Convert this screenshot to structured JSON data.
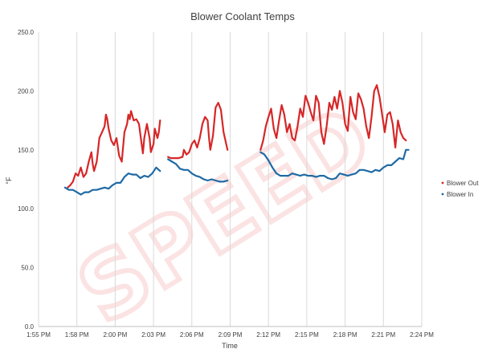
{
  "chart_data": {
    "type": "line",
    "title": "Blower Coolant Temps",
    "xlabel": "Time",
    "ylabel": "°F",
    "ylim": [
      0,
      250
    ],
    "y_ticks": [
      "0.0",
      "50.0",
      "100.0",
      "150.0",
      "200.0",
      "250.0"
    ],
    "x_ticks": [
      "1:55 PM",
      "1:58 PM",
      "2:00 PM",
      "2:03 PM",
      "2:06 PM",
      "2:09 PM",
      "2:12 PM",
      "2:15 PM",
      "2:18 PM",
      "2:21 PM",
      "2:24 PM"
    ],
    "x_unit": "minutes from 1:55 PM",
    "xlim": [
      0,
      29
    ],
    "grid": "vertical",
    "legend_position": "right",
    "colors": {
      "Blower Out": "#d62728",
      "Blower In": "#1f6aa5"
    },
    "watermark": "SPEED",
    "series": [
      {
        "name": "Blower Out",
        "segments": [
          [
            [
              2.2,
              118
            ],
            [
              2.4,
              120
            ],
            [
              2.6,
              123
            ],
            [
              2.8,
              130
            ],
            [
              3.0,
              128
            ],
            [
              3.2,
              135
            ],
            [
              3.4,
              127
            ],
            [
              3.6,
              130
            ],
            [
              3.8,
              140
            ],
            [
              4.0,
              148
            ],
            [
              4.1,
              138
            ],
            [
              4.2,
              132
            ],
            [
              4.4,
              140
            ],
            [
              4.6,
              160
            ],
            [
              4.8,
              165
            ],
            [
              5.0,
              170
            ],
            [
              5.1,
              180
            ],
            [
              5.2,
              176
            ],
            [
              5.3,
              168
            ],
            [
              5.5,
              158
            ],
            [
              5.7,
              154
            ],
            [
              5.9,
              160
            ],
            [
              6.1,
              145
            ],
            [
              6.3,
              140
            ],
            [
              6.5,
              165
            ],
            [
              6.7,
              172
            ],
            [
              6.8,
              180
            ],
            [
              6.9,
              176
            ],
            [
              7.0,
              183
            ],
            [
              7.2,
              175
            ],
            [
              7.4,
              176
            ],
            [
              7.6,
              172
            ],
            [
              7.8,
              155
            ],
            [
              7.9,
              147
            ],
            [
              8.0,
              160
            ],
            [
              8.2,
              172
            ],
            [
              8.4,
              160
            ],
            [
              8.5,
              148
            ],
            [
              8.7,
              155
            ],
            [
              8.8,
              168
            ],
            [
              9.0,
              160
            ],
            [
              9.1,
              165
            ],
            [
              9.2,
              175
            ]
          ],
          [
            [
              9.8,
              144
            ],
            [
              10.0,
              143
            ],
            [
              10.3,
              143
            ],
            [
              10.6,
              143
            ],
            [
              10.9,
              144
            ],
            [
              11.0,
              150
            ],
            [
              11.2,
              146
            ],
            [
              11.4,
              148
            ],
            [
              11.6,
              155
            ],
            [
              11.8,
              158
            ],
            [
              12.0,
              152
            ],
            [
              12.2,
              160
            ],
            [
              12.4,
              172
            ],
            [
              12.6,
              178
            ],
            [
              12.8,
              175
            ],
            [
              12.9,
              160
            ],
            [
              13.0,
              150
            ],
            [
              13.2,
              162
            ],
            [
              13.4,
              186
            ],
            [
              13.6,
              190
            ],
            [
              13.8,
              184
            ],
            [
              14.0,
              165
            ],
            [
              14.3,
              150
            ]
          ],
          [
            [
              16.8,
              150
            ],
            [
              17.0,
              158
            ],
            [
              17.2,
              170
            ],
            [
              17.4,
              178
            ],
            [
              17.6,
              185
            ],
            [
              17.8,
              168
            ],
            [
              18.0,
              160
            ],
            [
              18.2,
              175
            ],
            [
              18.4,
              188
            ],
            [
              18.6,
              180
            ],
            [
              18.8,
              165
            ],
            [
              19.0,
              172
            ],
            [
              19.2,
              160
            ],
            [
              19.4,
              158
            ],
            [
              19.6,
              170
            ],
            [
              19.8,
              185
            ],
            [
              20.0,
              178
            ],
            [
              20.2,
              196
            ],
            [
              20.4,
              190
            ],
            [
              20.6,
              182
            ],
            [
              20.8,
              175
            ],
            [
              21.0,
              196
            ],
            [
              21.2,
              190
            ],
            [
              21.4,
              165
            ],
            [
              21.6,
              155
            ],
            [
              21.8,
              170
            ],
            [
              22.0,
              190
            ],
            [
              22.2,
              184
            ],
            [
              22.4,
              195
            ],
            [
              22.6,
              185
            ],
            [
              22.8,
              200
            ],
            [
              23.0,
              190
            ],
            [
              23.2,
              172
            ],
            [
              23.4,
              166
            ],
            [
              23.6,
              195
            ],
            [
              23.8,
              182
            ],
            [
              24.0,
              176
            ],
            [
              24.2,
              198
            ],
            [
              24.4,
              193
            ],
            [
              24.6,
              185
            ],
            [
              24.8,
              170
            ],
            [
              25.0,
              160
            ],
            [
              25.2,
              178
            ],
            [
              25.4,
              200
            ],
            [
              25.6,
              205
            ],
            [
              25.8,
              195
            ],
            [
              26.0,
              180
            ],
            [
              26.2,
              165
            ],
            [
              26.4,
              180
            ],
            [
              26.6,
              182
            ],
            [
              26.8,
              172
            ],
            [
              27.0,
              152
            ],
            [
              27.2,
              175
            ],
            [
              27.4,
              165
            ],
            [
              27.6,
              160
            ],
            [
              27.8,
              158
            ]
          ]
        ]
      },
      {
        "name": "Blower In",
        "segments": [
          [
            [
              2.0,
              118
            ],
            [
              2.3,
              116
            ],
            [
              2.6,
              116
            ],
            [
              2.9,
              114
            ],
            [
              3.2,
              112
            ],
            [
              3.5,
              114
            ],
            [
              3.8,
              114
            ],
            [
              4.1,
              116
            ],
            [
              4.4,
              116
            ],
            [
              4.7,
              117
            ],
            [
              5.0,
              118
            ],
            [
              5.3,
              117
            ],
            [
              5.6,
              120
            ],
            [
              5.9,
              122
            ],
            [
              6.2,
              122
            ],
            [
              6.5,
              127
            ],
            [
              6.8,
              130
            ],
            [
              7.1,
              129
            ],
            [
              7.4,
              129
            ],
            [
              7.7,
              126
            ],
            [
              8.0,
              128
            ],
            [
              8.3,
              127
            ],
            [
              8.6,
              130
            ],
            [
              8.9,
              135
            ],
            [
              9.2,
              132
            ]
          ],
          [
            [
              9.8,
              142
            ],
            [
              10.1,
              140
            ],
            [
              10.4,
              138
            ],
            [
              10.7,
              134
            ],
            [
              11.0,
              133
            ],
            [
              11.3,
              133
            ],
            [
              11.6,
              130
            ],
            [
              11.9,
              128
            ],
            [
              12.2,
              127
            ],
            [
              12.5,
              125
            ],
            [
              12.8,
              124
            ],
            [
              13.1,
              125
            ],
            [
              13.4,
              124
            ],
            [
              13.7,
              123
            ],
            [
              14.0,
              123
            ],
            [
              14.3,
              124
            ]
          ],
          [
            [
              16.8,
              148
            ],
            [
              17.1,
              146
            ],
            [
              17.4,
              141
            ],
            [
              17.7,
              135
            ],
            [
              18.0,
              130
            ],
            [
              18.3,
              128
            ],
            [
              18.6,
              128
            ],
            [
              18.9,
              128
            ],
            [
              19.2,
              130
            ],
            [
              19.5,
              129
            ],
            [
              19.8,
              128
            ],
            [
              20.1,
              129
            ],
            [
              20.4,
              128
            ],
            [
              20.7,
              128
            ],
            [
              21.0,
              127
            ],
            [
              21.3,
              128
            ],
            [
              21.6,
              128
            ],
            [
              21.9,
              126
            ],
            [
              22.2,
              125
            ],
            [
              22.5,
              126
            ],
            [
              22.8,
              130
            ],
            [
              23.1,
              129
            ],
            [
              23.4,
              128
            ],
            [
              23.7,
              129
            ],
            [
              24.0,
              130
            ],
            [
              24.3,
              133
            ],
            [
              24.6,
              133
            ],
            [
              24.9,
              132
            ],
            [
              25.2,
              131
            ],
            [
              25.5,
              133
            ],
            [
              25.8,
              132
            ],
            [
              26.1,
              135
            ],
            [
              26.4,
              137
            ],
            [
              26.7,
              137
            ],
            [
              27.0,
              140
            ],
            [
              27.3,
              143
            ],
            [
              27.6,
              142
            ],
            [
              27.8,
              150
            ],
            [
              28.0,
              150
            ]
          ]
        ]
      }
    ]
  }
}
